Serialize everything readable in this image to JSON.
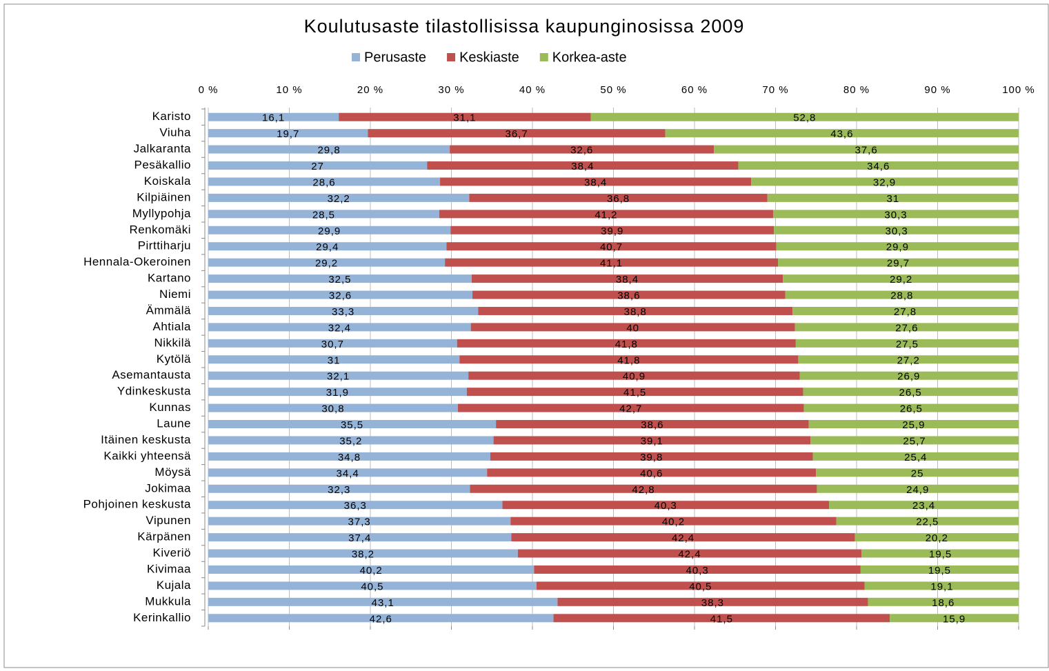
{
  "chart_data": {
    "type": "bar",
    "orientation": "horizontal",
    "stacked": true,
    "title": "Koulutusaste tilastollisissa kaupunginosissa 2009",
    "legend": "top",
    "categories": [
      "Karisto",
      "Viuha",
      "Jalkaranta",
      "Pesäkallio",
      "Koiskala",
      "Kilpiäinen",
      "Myllypohja",
      "Renkomäki",
      "Pirttiharju",
      "Hennala-Okeroinen",
      "Kartano",
      "Niemi",
      "Ämmälä",
      "Ahtiala",
      "Nikkilä",
      "Kytölä",
      "Asemantausta",
      "Ydinkeskusta",
      "Kunnas",
      "Laune",
      "Itäinen keskusta",
      "Kaikki yhteensä",
      "Möysä",
      "Jokimaa",
      "Pohjoinen keskusta",
      "Vipunen",
      "Kärpänen",
      "Kiveriö",
      "Kivimaa",
      "Kujala",
      "Mukkula",
      "Kerinkallio"
    ],
    "series": [
      {
        "name": "Perusaste",
        "color": "#95b3d7",
        "values": [
          16.1,
          19.7,
          29.8,
          27,
          28.6,
          32.2,
          28.5,
          29.9,
          29.4,
          29.2,
          32.5,
          32.6,
          33.3,
          32.4,
          30.7,
          31,
          32.1,
          31.9,
          30.8,
          35.5,
          35.2,
          34.8,
          34.4,
          32.3,
          36.3,
          37.3,
          37.4,
          38.2,
          40.2,
          40.5,
          43.1,
          42.6
        ],
        "value_labels": [
          "16,1",
          "19,7",
          "29,8",
          "27",
          "28,6",
          "32,2",
          "28,5",
          "29,9",
          "29,4",
          "29,2",
          "32,5",
          "32,6",
          "33,3",
          "32,4",
          "30,7",
          "31",
          "32,1",
          "31,9",
          "30,8",
          "35,5",
          "35,2",
          "34,8",
          "34,4",
          "32,3",
          "36,3",
          "37,3",
          "37,4",
          "38,2",
          "40,2",
          "40,5",
          "43,1",
          "42,6"
        ]
      },
      {
        "name": "Keskiaste",
        "color": "#c0504d",
        "values": [
          31.1,
          36.7,
          32.6,
          38.4,
          38.4,
          36.8,
          41.2,
          39.9,
          40.7,
          41.1,
          38.4,
          38.6,
          38.8,
          40,
          41.8,
          41.8,
          40.9,
          41.5,
          42.7,
          38.6,
          39.1,
          39.8,
          40.6,
          42.8,
          40.3,
          40.2,
          42.4,
          42.4,
          40.3,
          40.5,
          38.3,
          41.5
        ],
        "value_labels": [
          "31,1",
          "36,7",
          "32,6",
          "38,4",
          "38,4",
          "36,8",
          "41,2",
          "39,9",
          "40,7",
          "41,1",
          "38,4",
          "38,6",
          "38,8",
          "40",
          "41,8",
          "41,8",
          "40,9",
          "41,5",
          "42,7",
          "38,6",
          "39,1",
          "39,8",
          "40,6",
          "42,8",
          "40,3",
          "40,2",
          "42,4",
          "42,4",
          "40,3",
          "40,5",
          "38,3",
          "41,5"
        ]
      },
      {
        "name": "Korkea-aste",
        "color": "#9bbb59",
        "values": [
          52.8,
          43.6,
          37.6,
          34.6,
          32.9,
          31,
          30.3,
          30.3,
          29.9,
          29.7,
          29.2,
          28.8,
          27.8,
          27.6,
          27.5,
          27.2,
          26.9,
          26.5,
          26.5,
          25.9,
          25.7,
          25.4,
          25,
          24.9,
          23.4,
          22.5,
          20.2,
          19.5,
          19.5,
          19.1,
          18.6,
          15.9
        ],
        "value_labels": [
          "52,8",
          "43,6",
          "37,6",
          "34,6",
          "32,9",
          "31",
          "30,3",
          "30,3",
          "29,9",
          "29,7",
          "29,2",
          "28,8",
          "27,8",
          "27,6",
          "27,5",
          "27,2",
          "26,9",
          "26,5",
          "26,5",
          "25,9",
          "25,7",
          "25,4",
          "25",
          "24,9",
          "23,4",
          "22,5",
          "20,2",
          "19,5",
          "19,5",
          "19,1",
          "18,6",
          "15,9"
        ]
      }
    ],
    "xlim": [
      0,
      100
    ],
    "xticks": [
      {
        "value": 0,
        "label": "0 %"
      },
      {
        "value": 10,
        "label": "10 %"
      },
      {
        "value": 20,
        "label": "20 %"
      },
      {
        "value": 30,
        "label": "30 %"
      },
      {
        "value": 40,
        "label": "40 %"
      },
      {
        "value": 50,
        "label": "50 %"
      },
      {
        "value": 60,
        "label": "60 %"
      },
      {
        "value": 70,
        "label": "70 %"
      },
      {
        "value": 80,
        "label": "80 %"
      },
      {
        "value": 90,
        "label": "90 %"
      },
      {
        "value": 100,
        "label": "100 %"
      }
    ],
    "grid": true
  }
}
